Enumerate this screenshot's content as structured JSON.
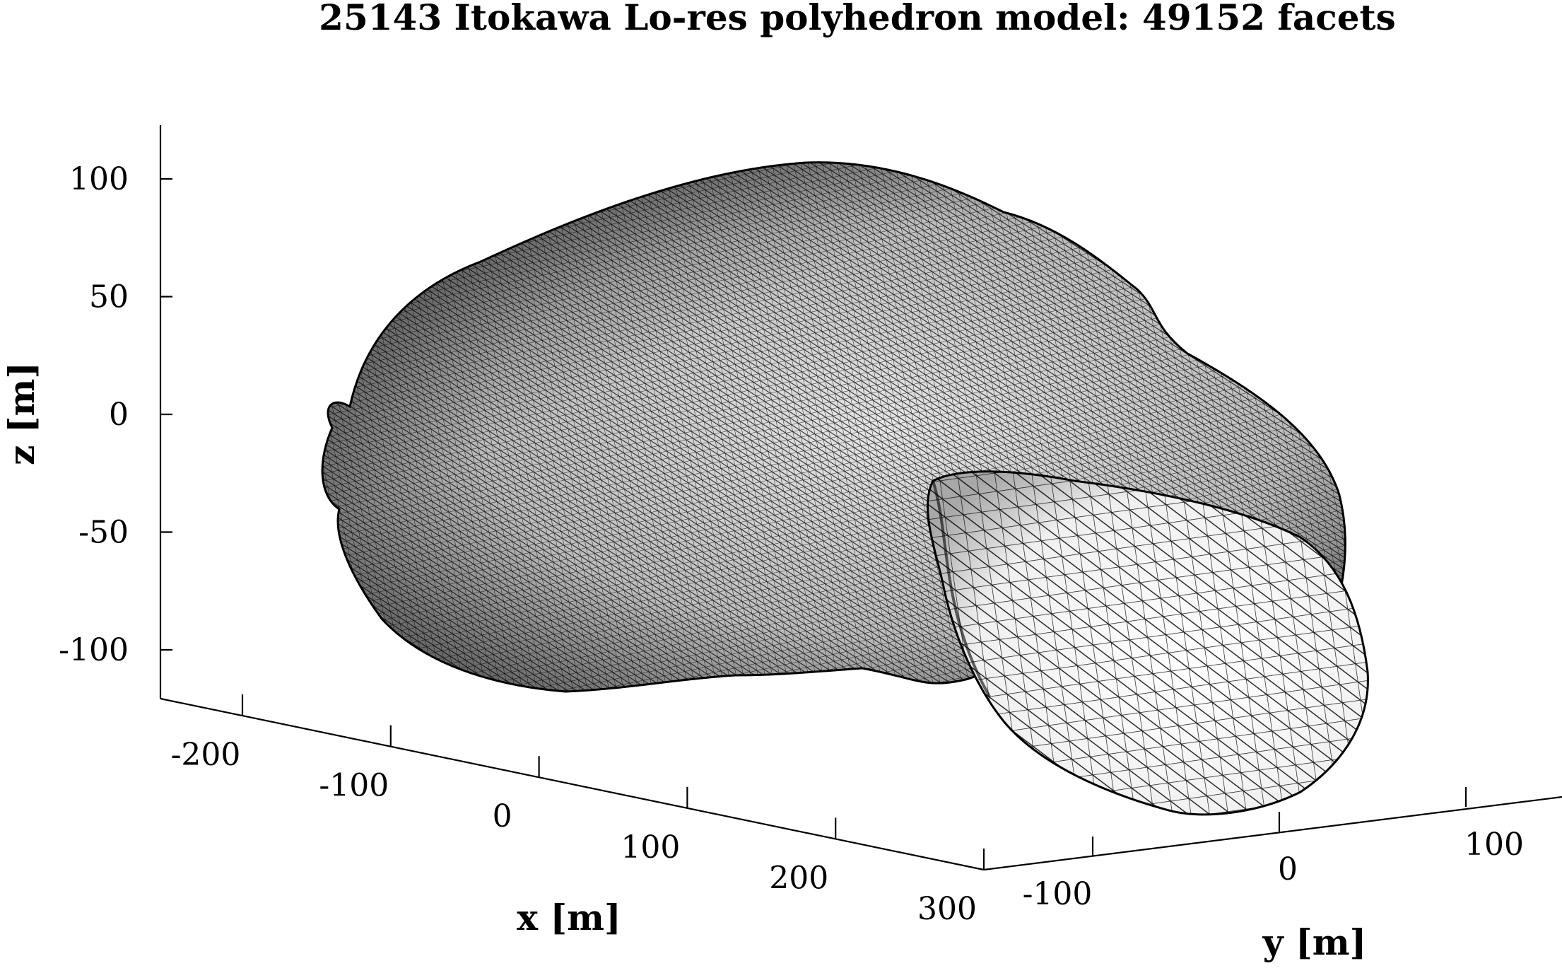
{
  "chart_data": {
    "type": "3d-mesh",
    "title": "25143 Itokawa Lo-res polyhedron model: 49152 facets",
    "xlabel": "x  [m]",
    "ylabel": "y  [m]",
    "zlabel": "z  [m]",
    "x_ticks": [
      "-200",
      "-100",
      "0",
      "100",
      "200",
      "300"
    ],
    "y_ticks": [
      "-100",
      "0",
      "100"
    ],
    "z_ticks": [
      "100",
      "50",
      "0",
      "-50",
      "-100"
    ],
    "grid": false,
    "colors": {
      "mesh_edge": "#000000",
      "face_light": "#f2f2f2",
      "face_dark": "#3a3a3a"
    }
  }
}
